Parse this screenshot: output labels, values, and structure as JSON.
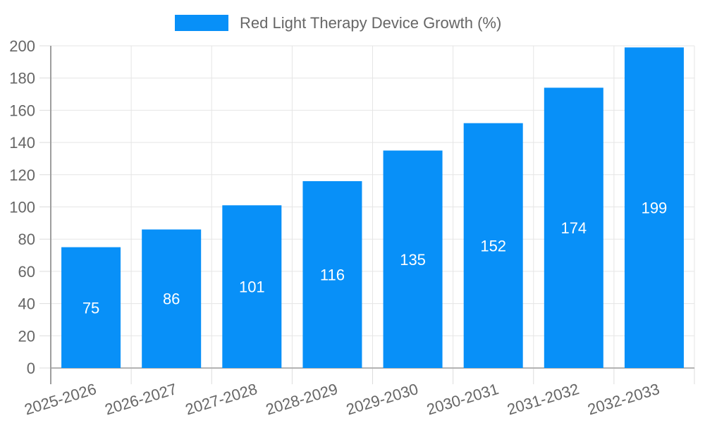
{
  "chart_data": {
    "type": "bar",
    "title": "Red Light Therapy Device Growth (%)",
    "categories": [
      "2025-2026",
      "2026-2027",
      "2027-2028",
      "2028-2029",
      "2029-2030",
      "2030-2031",
      "2031-2032",
      "2032-2033"
    ],
    "values": [
      75,
      86,
      101,
      116,
      135,
      152,
      174,
      199
    ],
    "xlabel": "",
    "ylabel": "",
    "ylim": [
      0,
      200
    ],
    "ytick_step": 20,
    "grid": true,
    "legend_position": "top",
    "value_labels": "inside-center",
    "colors": {
      "bar": "#0890f8",
      "value_label": "#ffffff",
      "axis_text": "#666666",
      "gridline": "#e5e5e5",
      "tick_mark": "#dcdcdc",
      "y_axis_line": "#9e9e9e",
      "x_axis_line": "#b3b3b3",
      "background": "#ffffff"
    }
  }
}
